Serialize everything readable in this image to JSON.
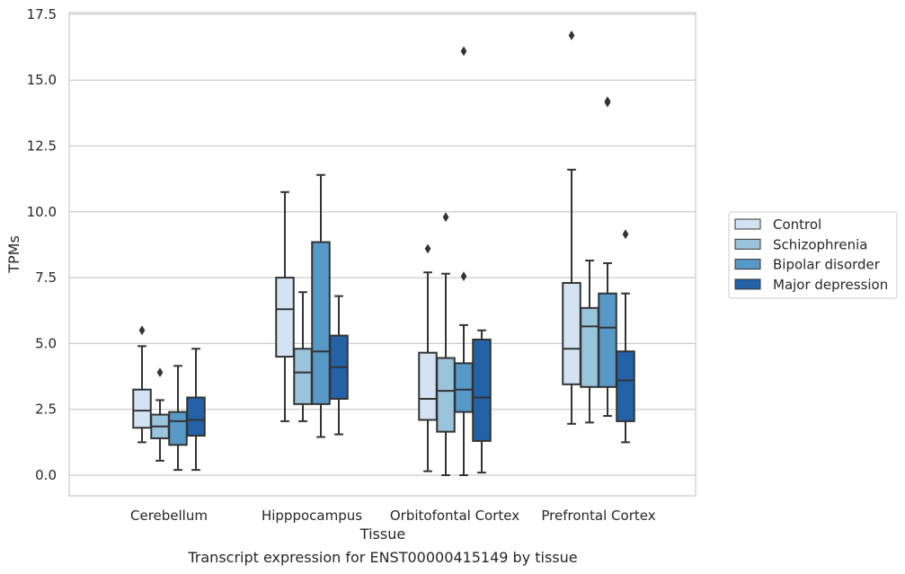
{
  "chart_data": {
    "type": "box",
    "title": "",
    "xlabel": "Tissue",
    "ylabel": "TPMs",
    "caption": "Transcript expression for ENST00000415149 by tissue",
    "ylim": [
      -0.8,
      17.6
    ],
    "yticks": [
      0.0,
      2.5,
      5.0,
      7.5,
      10.0,
      12.5,
      15.0,
      17.5
    ],
    "ytick_labels": [
      "0.0",
      "2.5",
      "5.0",
      "7.5",
      "10.0",
      "12.5",
      "15.0",
      "17.5"
    ],
    "grid": "horizontal",
    "legend_position": "right",
    "categories": [
      "Cerebellum",
      "Hipppocampus",
      "Orbitofontal Cortex",
      "Prefrontal Cortex"
    ],
    "series": [
      {
        "name": "Control",
        "color": "#d4e3f3",
        "boxes": [
          {
            "whislo": 1.25,
            "q1": 1.8,
            "med": 2.45,
            "q3": 3.25,
            "whishi": 4.9,
            "fliers": [
              5.5
            ]
          },
          {
            "whislo": 2.05,
            "q1": 4.5,
            "med": 6.3,
            "q3": 7.5,
            "whishi": 10.75,
            "fliers": []
          },
          {
            "whislo": 0.15,
            "q1": 2.1,
            "med": 2.9,
            "q3": 4.65,
            "whishi": 7.7,
            "fliers": [
              8.6
            ]
          },
          {
            "whislo": 1.95,
            "q1": 3.45,
            "med": 4.8,
            "q3": 7.3,
            "whishi": 11.6,
            "fliers": [
              16.7
            ]
          }
        ]
      },
      {
        "name": "Schizophrenia",
        "color": "#9ac3dc",
        "boxes": [
          {
            "whislo": 0.55,
            "q1": 1.4,
            "med": 1.85,
            "q3": 2.3,
            "whishi": 2.85,
            "fliers": [
              3.9
            ]
          },
          {
            "whislo": 2.05,
            "q1": 2.7,
            "med": 3.9,
            "q3": 4.8,
            "whishi": 6.95,
            "fliers": []
          },
          {
            "whislo": 0.0,
            "q1": 1.65,
            "med": 3.2,
            "q3": 4.45,
            "whishi": 7.65,
            "fliers": [
              9.8
            ]
          },
          {
            "whislo": 2.0,
            "q1": 3.35,
            "med": 5.65,
            "q3": 6.35,
            "whishi": 8.15,
            "fliers": []
          }
        ]
      },
      {
        "name": "Bipolar disorder",
        "color": "#5699c7",
        "boxes": [
          {
            "whislo": 0.2,
            "q1": 1.15,
            "med": 2.05,
            "q3": 2.4,
            "whishi": 4.15,
            "fliers": []
          },
          {
            "whislo": 1.45,
            "q1": 2.7,
            "med": 4.7,
            "q3": 8.85,
            "whishi": 11.4,
            "fliers": []
          },
          {
            "whislo": 0.0,
            "q1": 2.4,
            "med": 3.25,
            "q3": 4.25,
            "whishi": 5.7,
            "fliers": [
              7.55,
              16.1
            ]
          },
          {
            "whislo": 2.25,
            "q1": 3.35,
            "med": 5.6,
            "q3": 6.9,
            "whishi": 8.05,
            "fliers": [
              14.15,
              14.2
            ]
          }
        ]
      },
      {
        "name": "Major depression",
        "color": "#2462a8",
        "boxes": [
          {
            "whislo": 0.2,
            "q1": 1.5,
            "med": 2.1,
            "q3": 2.95,
            "whishi": 4.8,
            "fliers": []
          },
          {
            "whislo": 1.55,
            "q1": 2.9,
            "med": 4.1,
            "q3": 5.3,
            "whishi": 6.8,
            "fliers": []
          },
          {
            "whislo": 0.1,
            "q1": 1.3,
            "med": 2.95,
            "q3": 5.15,
            "whishi": 5.5,
            "fliers": []
          },
          {
            "whislo": 1.25,
            "q1": 2.05,
            "med": 3.6,
            "q3": 4.7,
            "whishi": 6.9,
            "fliers": [
              9.15
            ]
          }
        ]
      }
    ],
    "line_color": "#333333",
    "grid_color": "#cccccc"
  }
}
